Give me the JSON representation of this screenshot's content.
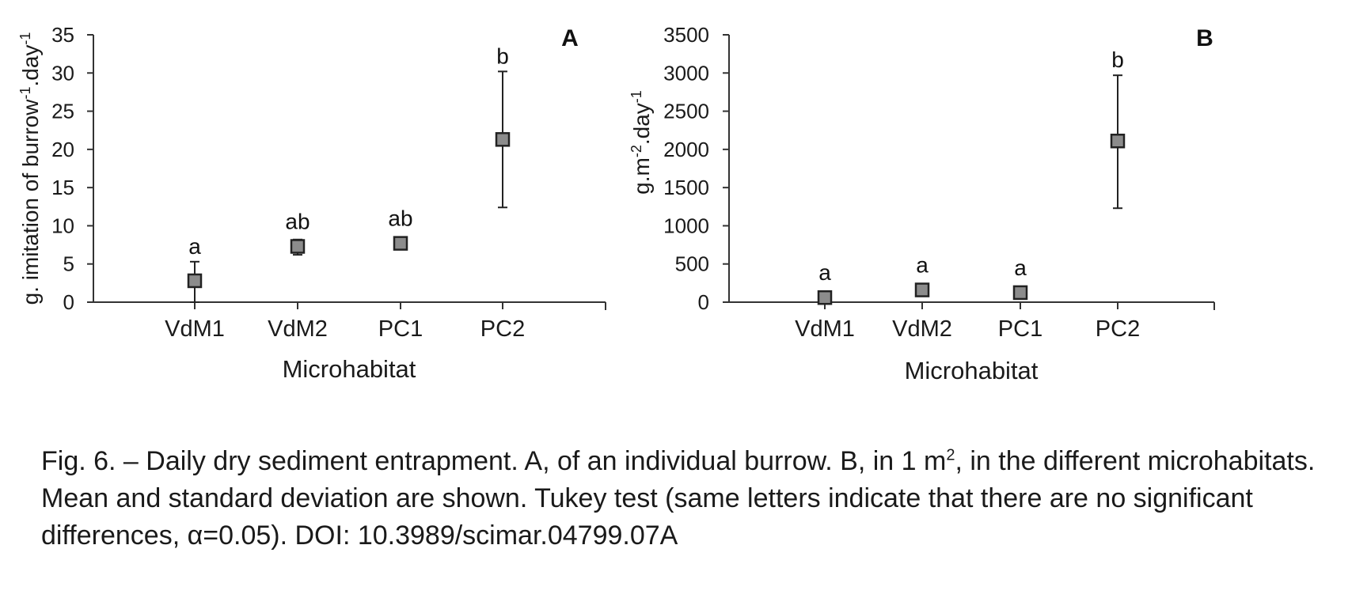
{
  "chart_data": [
    {
      "type": "scatter",
      "panel_label": "A",
      "categories": [
        "VdM1",
        "VdM2",
        "PC1",
        "PC2"
      ],
      "values": [
        2.8,
        7.3,
        7.7,
        21.3
      ],
      "error_low": [
        0,
        6.2,
        7.3,
        12.4
      ],
      "error_high": [
        5.3,
        8.2,
        8.1,
        30.2
      ],
      "significance_letters": [
        "a",
        "ab",
        "ab",
        "b"
      ],
      "xlabel": "Microhabitat",
      "ylabel": "g. imitation of burrow·day",
      "ylabel_parts": [
        {
          "text": "g. imitation of burrow",
          "sup": false
        },
        {
          "text": "-1",
          "sup": true
        },
        {
          "text": ".day",
          "sup": false
        },
        {
          "text": "-1",
          "sup": true
        }
      ],
      "ylim": [
        0,
        35
      ],
      "yticks": [
        "0",
        "5",
        "10",
        "15",
        "20",
        "25",
        "30",
        "35"
      ],
      "marker_color": "#8c8c8c",
      "grid": false
    },
    {
      "type": "scatter",
      "panel_label": "B",
      "categories": [
        "VdM1",
        "VdM2",
        "PC1",
        "PC2"
      ],
      "values": [
        60,
        160,
        125,
        2110
      ],
      "error_low": [
        null,
        null,
        null,
        1230
      ],
      "error_high": [
        null,
        null,
        null,
        2970
      ],
      "significance_letters": [
        "a",
        "a",
        "a",
        "b"
      ],
      "xlabel": "Microhabitat",
      "ylabel": "g.m·day",
      "ylabel_parts": [
        {
          "text": "g.m",
          "sup": false
        },
        {
          "text": "-2",
          "sup": true
        },
        {
          "text": ".day",
          "sup": false
        },
        {
          "text": "-1",
          "sup": true
        }
      ],
      "ylim": [
        0,
        3500
      ],
      "yticks": [
        "0",
        "500",
        "1000",
        "1500",
        "2000",
        "2500",
        "3000",
        "3500"
      ],
      "marker_color": "#8c8c8c",
      "grid": false
    }
  ],
  "caption": {
    "part1": "Fig. 6. – Daily dry sediment entrapment. A, of an individual burrow. B, in 1 m",
    "sup": "2",
    "part2": ", in the different microhabitats. Mean and standard deviation are shown. Tukey test (same letters indicate that there are no significant differences, α=0.05). DOI: 10.3989/scimar.04799.07A"
  }
}
